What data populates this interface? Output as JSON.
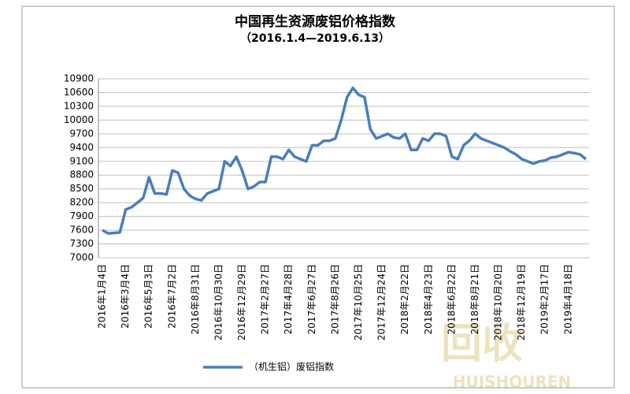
{
  "chart_data": {
    "type": "line",
    "title": "中国再生资源废铝价格指数",
    "subtitle": "（2016.1.4—2019.6.13）",
    "categories": [
      "2016年1月4日",
      null,
      null,
      null,
      "2016年3月4日",
      null,
      null,
      null,
      "2016年5月3日",
      null,
      null,
      null,
      "2016年7月2日",
      null,
      null,
      null,
      "2016年8月31日",
      null,
      null,
      null,
      "2016年10月30日",
      null,
      null,
      null,
      "2016年12月29日",
      null,
      null,
      null,
      "2017年2月27日",
      null,
      null,
      null,
      "2017年4月28日",
      null,
      null,
      null,
      "2017年6月27日",
      null,
      null,
      null,
      "2017年8月26日",
      null,
      null,
      null,
      "2017年10月25日",
      null,
      null,
      null,
      "2017年12月24日",
      null,
      null,
      null,
      "2018年2月22日",
      null,
      null,
      null,
      "2018年4月23日",
      null,
      null,
      null,
      "2018年6月22日",
      null,
      null,
      null,
      "2018年8月21日",
      null,
      null,
      null,
      "2018年10月20日",
      null,
      null,
      null,
      "2018年12月19日",
      null,
      null,
      null,
      "2019年2月17日",
      null,
      null,
      null,
      "2019年4月18日",
      null,
      null,
      null
    ],
    "series": [
      {
        "name": "（机生铝）废铝指数",
        "color": "#4a7ebb",
        "values": [
          7600,
          7530,
          7540,
          7550,
          8050,
          8100,
          8200,
          8300,
          8750,
          8400,
          8400,
          8380,
          8900,
          8850,
          8500,
          8350,
          8280,
          8250,
          8400,
          8450,
          8500,
          9100,
          9000,
          9200,
          8900,
          8500,
          8550,
          8650,
          8650,
          9200,
          9200,
          9150,
          9350,
          9200,
          9150,
          9100,
          9450,
          9450,
          9550,
          9550,
          9600,
          10000,
          10500,
          10700,
          10550,
          10500,
          9800,
          9600,
          9650,
          9700,
          9620,
          9600,
          9700,
          9350,
          9350,
          9600,
          9550,
          9700,
          9700,
          9650,
          9200,
          9150,
          9450,
          9550,
          9700,
          9600,
          9550,
          9500,
          9450,
          9400,
          9320,
          9250,
          9150,
          9100,
          9050,
          9100,
          9120,
          9180,
          9200,
          9250,
          9300,
          9280,
          9250,
          9150
        ]
      }
    ],
    "ylim": [
      7000,
      10900
    ],
    "yticks": [
      7000,
      7300,
      7600,
      7900,
      8200,
      8500,
      8800,
      9100,
      9400,
      9700,
      10000,
      10300,
      10600,
      10900
    ],
    "grid": true,
    "watermark": {
      "logo": "回收",
      "brand": "HUISHOUREN"
    }
  }
}
